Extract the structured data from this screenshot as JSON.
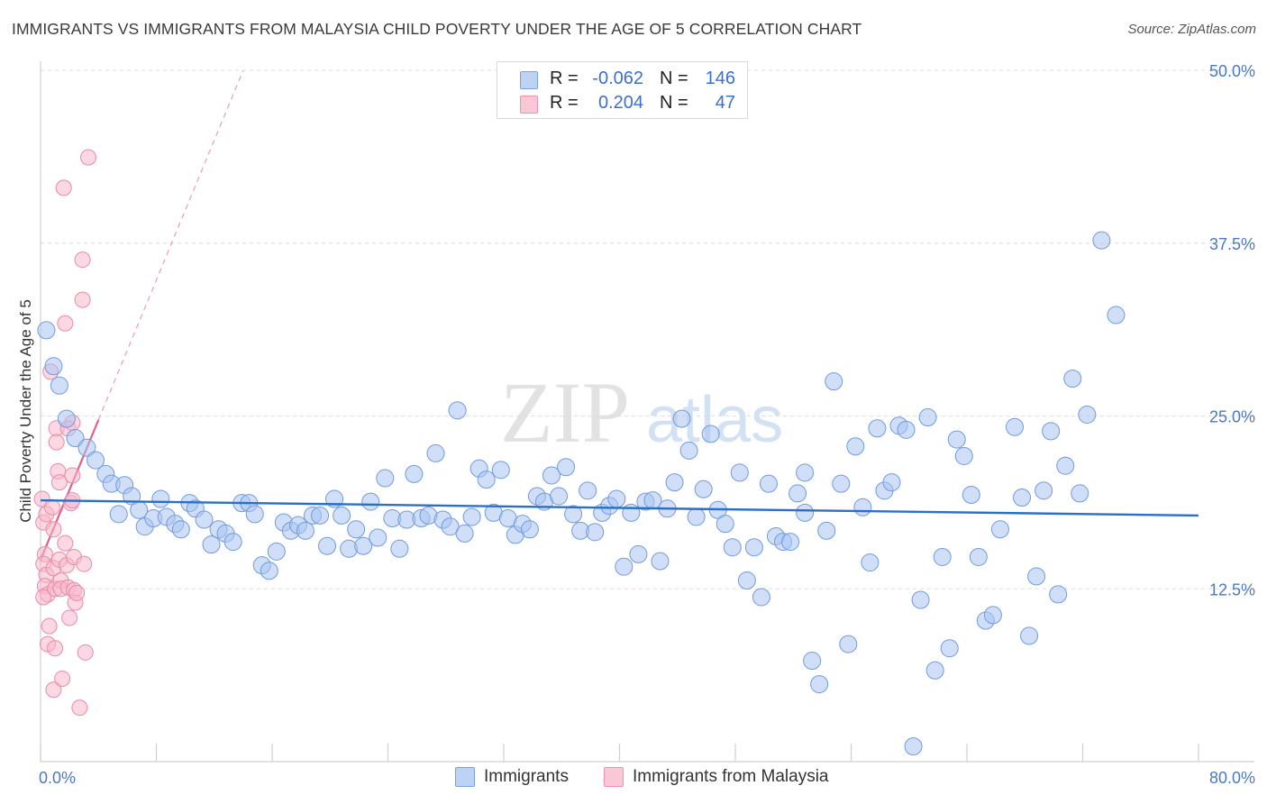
{
  "title": "IMMIGRANTS VS IMMIGRANTS FROM MALAYSIA CHILD POVERTY UNDER THE AGE OF 5 CORRELATION CHART",
  "source": "Source: ZipAtlas.com",
  "watermark": {
    "zip": "ZIP",
    "atlas": "atlas"
  },
  "legend": {
    "rows": [
      {
        "r_label": "R =",
        "r_value": "-0.062",
        "n_label": "N =",
        "n_value": "146"
      },
      {
        "r_label": "R =",
        "r_value": "0.204",
        "n_label": "N =",
        "n_value": "47"
      }
    ]
  },
  "bottom_legend": {
    "immigrants": "Immigrants",
    "malaysia": "Immigrants from Malaysia"
  },
  "colors": {
    "blue_fill": "#a9c5f0",
    "blue_stroke": "#6f9be0",
    "blue_line": "#2a6fc9",
    "pink_fill": "#f7b8cb",
    "pink_stroke": "#e98aa8",
    "pink_line": "#e0608a",
    "grid": "#dddddd",
    "tick_text": "#4a78c8"
  },
  "chart_data": {
    "type": "scatter",
    "title": "IMMIGRANTS VS IMMIGRANTS FROM MALAYSIA CHILD POVERTY UNDER THE AGE OF 5 CORRELATION CHART",
    "xlabel": "",
    "ylabel": "Child Poverty Under the Age of 5",
    "xlim": [
      0,
      80
    ],
    "ylim": [
      0,
      50
    ],
    "x_tick_labels": [
      "0.0%",
      "80.0%"
    ],
    "y_ticks": [
      12.5,
      25.0,
      37.5,
      50.0
    ],
    "y_tick_labels": [
      "12.5%",
      "25.0%",
      "37.5%",
      "50.0%"
    ],
    "grid": true,
    "series": [
      {
        "name": "Immigrants",
        "trend": {
          "x": [
            0,
            80
          ],
          "y": [
            18.9,
            17.8
          ],
          "style": "solid"
        },
        "points": [
          [
            0.4,
            31.2
          ],
          [
            0.9,
            28.6
          ],
          [
            1.3,
            27.2
          ],
          [
            1.8,
            24.8
          ],
          [
            2.4,
            23.4
          ],
          [
            3.2,
            22.7
          ],
          [
            3.8,
            21.8
          ],
          [
            4.5,
            20.8
          ],
          [
            4.9,
            20.1
          ],
          [
            5.4,
            17.9
          ],
          [
            5.8,
            20.0
          ],
          [
            6.3,
            19.2
          ],
          [
            6.8,
            18.2
          ],
          [
            7.2,
            17.0
          ],
          [
            7.8,
            17.6
          ],
          [
            8.3,
            19.0
          ],
          [
            8.7,
            17.7
          ],
          [
            9.3,
            17.2
          ],
          [
            9.7,
            16.8
          ],
          [
            10.3,
            18.7
          ],
          [
            10.7,
            18.3
          ],
          [
            11.3,
            17.5
          ],
          [
            11.8,
            15.7
          ],
          [
            12.3,
            16.8
          ],
          [
            12.8,
            16.5
          ],
          [
            13.3,
            15.9
          ],
          [
            13.9,
            18.7
          ],
          [
            14.4,
            18.7
          ],
          [
            14.8,
            17.9
          ],
          [
            15.3,
            14.2
          ],
          [
            15.8,
            13.8
          ],
          [
            16.3,
            15.2
          ],
          [
            16.8,
            17.3
          ],
          [
            17.3,
            16.7
          ],
          [
            17.8,
            17.1
          ],
          [
            18.3,
            16.7
          ],
          [
            18.8,
            17.8
          ],
          [
            19.3,
            17.8
          ],
          [
            19.8,
            15.6
          ],
          [
            20.3,
            19.0
          ],
          [
            20.8,
            17.8
          ],
          [
            21.3,
            15.4
          ],
          [
            21.8,
            16.8
          ],
          [
            22.3,
            15.6
          ],
          [
            22.8,
            18.8
          ],
          [
            23.3,
            16.2
          ],
          [
            23.8,
            20.5
          ],
          [
            24.3,
            17.6
          ],
          [
            24.8,
            15.4
          ],
          [
            25.3,
            17.5
          ],
          [
            25.8,
            20.8
          ],
          [
            26.3,
            17.6
          ],
          [
            26.8,
            17.8
          ],
          [
            27.3,
            22.3
          ],
          [
            27.8,
            17.5
          ],
          [
            28.3,
            17.0
          ],
          [
            28.8,
            25.4
          ],
          [
            29.3,
            16.5
          ],
          [
            29.8,
            17.7
          ],
          [
            30.3,
            21.2
          ],
          [
            30.8,
            20.4
          ],
          [
            31.3,
            18.0
          ],
          [
            31.8,
            21.1
          ],
          [
            32.3,
            17.6
          ],
          [
            32.8,
            16.4
          ],
          [
            33.3,
            17.2
          ],
          [
            33.8,
            16.8
          ],
          [
            34.3,
            19.2
          ],
          [
            34.8,
            18.8
          ],
          [
            35.3,
            20.7
          ],
          [
            35.8,
            19.2
          ],
          [
            36.3,
            21.3
          ],
          [
            36.8,
            17.9
          ],
          [
            37.3,
            16.7
          ],
          [
            37.8,
            19.6
          ],
          [
            38.3,
            16.6
          ],
          [
            38.8,
            18.0
          ],
          [
            39.3,
            18.5
          ],
          [
            39.8,
            19.0
          ],
          [
            40.3,
            14.1
          ],
          [
            40.8,
            18.0
          ],
          [
            41.3,
            15.0
          ],
          [
            41.8,
            18.8
          ],
          [
            42.3,
            18.9
          ],
          [
            42.8,
            14.5
          ],
          [
            43.3,
            18.3
          ],
          [
            43.8,
            20.2
          ],
          [
            44.3,
            24.8
          ],
          [
            44.8,
            22.5
          ],
          [
            45.3,
            17.7
          ],
          [
            45.8,
            19.7
          ],
          [
            46.3,
            23.7
          ],
          [
            46.8,
            18.2
          ],
          [
            47.3,
            17.2
          ],
          [
            47.8,
            15.5
          ],
          [
            48.3,
            20.9
          ],
          [
            48.8,
            13.1
          ],
          [
            49.3,
            15.5
          ],
          [
            49.8,
            11.9
          ],
          [
            50.3,
            20.1
          ],
          [
            50.8,
            16.3
          ],
          [
            51.3,
            15.9
          ],
          [
            51.8,
            15.9
          ],
          [
            52.3,
            19.4
          ],
          [
            52.8,
            20.9
          ],
          [
            53.3,
            7.3
          ],
          [
            53.8,
            5.6
          ],
          [
            54.3,
            16.7
          ],
          [
            54.8,
            27.5
          ],
          [
            55.3,
            20.1
          ],
          [
            55.8,
            8.5
          ],
          [
            56.3,
            22.8
          ],
          [
            56.8,
            18.4
          ],
          [
            57.3,
            14.4
          ],
          [
            57.8,
            24.1
          ],
          [
            58.3,
            19.6
          ],
          [
            58.8,
            20.2
          ],
          [
            59.3,
            24.3
          ],
          [
            59.8,
            24.0
          ],
          [
            60.3,
            1.1
          ],
          [
            60.8,
            11.7
          ],
          [
            61.3,
            24.9
          ],
          [
            61.8,
            6.6
          ],
          [
            62.3,
            14.8
          ],
          [
            62.8,
            8.2
          ],
          [
            63.3,
            23.3
          ],
          [
            63.8,
            22.1
          ],
          [
            64.3,
            19.3
          ],
          [
            64.8,
            14.8
          ],
          [
            65.3,
            10.2
          ],
          [
            65.8,
            10.6
          ],
          [
            66.3,
            16.8
          ],
          [
            67.3,
            24.2
          ],
          [
            67.8,
            19.1
          ],
          [
            68.3,
            9.1
          ],
          [
            68.8,
            13.4
          ],
          [
            69.3,
            19.6
          ],
          [
            69.8,
            23.9
          ],
          [
            70.3,
            12.1
          ],
          [
            70.8,
            21.4
          ],
          [
            71.3,
            27.7
          ],
          [
            71.8,
            19.4
          ],
          [
            72.3,
            25.1
          ],
          [
            73.3,
            37.7
          ],
          [
            74.3,
            32.3
          ],
          [
            52.8,
            18.0
          ]
        ]
      },
      {
        "name": "Immigrants from Malaysia",
        "trend": {
          "x": [
            0,
            14
          ],
          "y": [
            14.6,
            50
          ],
          "style": "solid-then-dashed",
          "solid_until_x": 4.0
        },
        "points": [
          [
            0.1,
            19.0
          ],
          [
            0.2,
            17.3
          ],
          [
            0.3,
            15.0
          ],
          [
            0.2,
            14.3
          ],
          [
            0.4,
            13.5
          ],
          [
            0.3,
            12.7
          ],
          [
            0.5,
            12.1
          ],
          [
            0.2,
            11.9
          ],
          [
            0.6,
            9.8
          ],
          [
            0.5,
            8.5
          ],
          [
            0.4,
            17.9
          ],
          [
            0.7,
            28.2
          ],
          [
            0.8,
            18.4
          ],
          [
            0.9,
            16.8
          ],
          [
            0.9,
            14.0
          ],
          [
            1.0,
            12.5
          ],
          [
            1.0,
            8.2
          ],
          [
            0.9,
            5.2
          ],
          [
            1.1,
            24.1
          ],
          [
            1.1,
            23.1
          ],
          [
            1.2,
            21.0
          ],
          [
            1.3,
            20.2
          ],
          [
            1.3,
            14.6
          ],
          [
            1.4,
            13.1
          ],
          [
            1.4,
            12.5
          ],
          [
            1.5,
            6.0
          ],
          [
            1.6,
            41.5
          ],
          [
            1.7,
            31.7
          ],
          [
            1.7,
            15.8
          ],
          [
            1.8,
            14.2
          ],
          [
            1.9,
            24.1
          ],
          [
            1.9,
            12.6
          ],
          [
            2.0,
            10.4
          ],
          [
            2.1,
            18.7
          ],
          [
            2.2,
            24.5
          ],
          [
            2.3,
            12.4
          ],
          [
            2.4,
            11.5
          ],
          [
            2.5,
            12.2
          ],
          [
            2.7,
            3.9
          ],
          [
            2.2,
            18.9
          ],
          [
            2.3,
            14.8
          ],
          [
            2.2,
            20.7
          ],
          [
            2.9,
            33.4
          ],
          [
            2.9,
            36.3
          ],
          [
            3.3,
            43.7
          ],
          [
            3.1,
            7.9
          ],
          [
            3.0,
            14.3
          ]
        ]
      }
    ]
  }
}
